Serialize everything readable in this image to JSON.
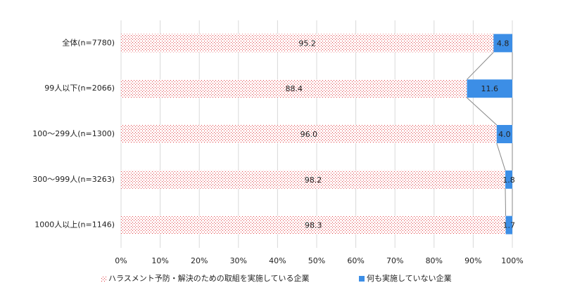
{
  "chart_data": {
    "type": "stacked-bar-horizontal",
    "categories": [
      "全体(n=7780)",
      "99人以下(n=2066)",
      "100～299人(n=1300)",
      "300～999人(n=3263)",
      "1000人以上(n=1146)"
    ],
    "series": [
      {
        "name": "ハラスメント予防・解決のための取組を実施している企業",
        "color": "#e0393e",
        "pattern": "dots",
        "values": [
          95.2,
          88.4,
          96.0,
          98.2,
          98.3
        ],
        "value_labels": [
          "95.2",
          "88.4",
          "96.0",
          "98.2",
          "98.3"
        ]
      },
      {
        "name": "何も実施していない企業",
        "color": "#3c8ee6",
        "values": [
          4.8,
          11.6,
          4.0,
          1.8,
          1.7
        ],
        "value_labels": [
          "4.8",
          "11.6",
          "4.0",
          "1.8",
          "1.7"
        ]
      }
    ],
    "xlim": [
      0,
      100
    ],
    "xticks": [
      {
        "value": 0,
        "label": "0%"
      },
      {
        "value": 10,
        "label": "10%"
      },
      {
        "value": 20,
        "label": "20%"
      },
      {
        "value": 30,
        "label": "30%"
      },
      {
        "value": 40,
        "label": "40%"
      },
      {
        "value": 50,
        "label": "50%"
      },
      {
        "value": 60,
        "label": "60%"
      },
      {
        "value": 70,
        "label": "70%"
      },
      {
        "value": 80,
        "label": "80%"
      },
      {
        "value": 90,
        "label": "90%"
      },
      {
        "value": 100,
        "label": "100%"
      }
    ],
    "grid": true,
    "series_lines": true,
    "legend": "bottom"
  }
}
